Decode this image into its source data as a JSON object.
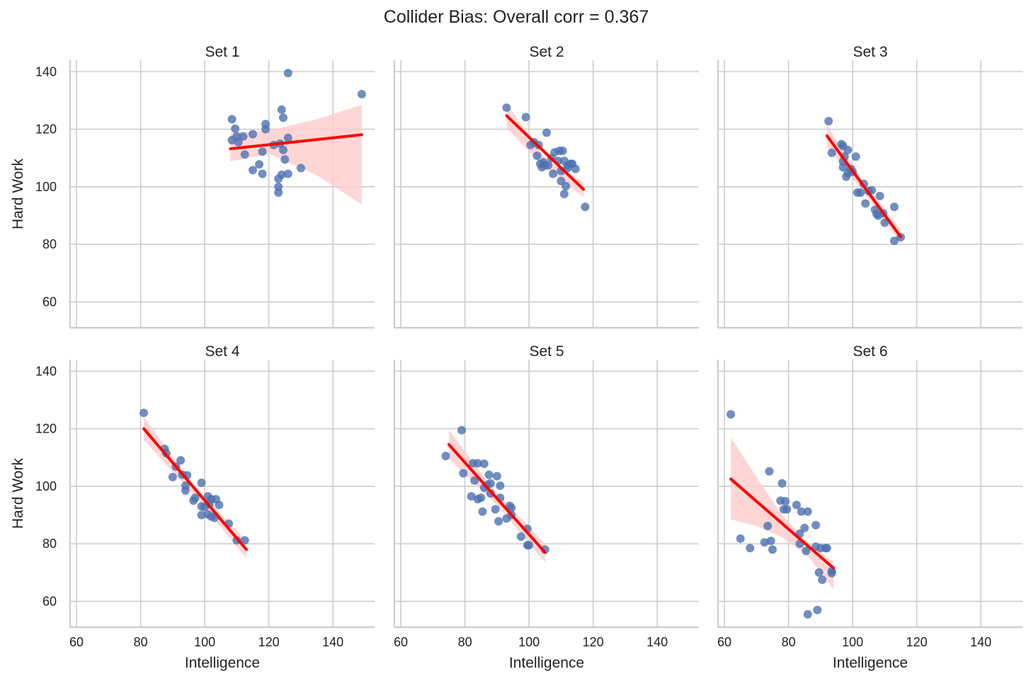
{
  "chart_data": {
    "type": "scatter",
    "title": "Collider Bias: Overall corr = 0.367",
    "xlabel": "Intelligence",
    "ylabel": "Hard Work",
    "xlim": [
      58,
      153
    ],
    "ylim": [
      51,
      144
    ],
    "xticks": [
      60,
      80,
      100,
      120,
      140
    ],
    "yticks": [
      60,
      80,
      100,
      120,
      140
    ],
    "grid": true,
    "colors": {
      "points": "#4c72b0",
      "fit": "#ff0000",
      "band": "#ffcccc"
    },
    "panels": [
      {
        "title": "Set 1",
        "points": [
          [
            108.5,
            123.5
          ],
          [
            109.5,
            120.2
          ],
          [
            110,
            117.5
          ],
          [
            108.5,
            116.2
          ],
          [
            110.5,
            115.5
          ],
          [
            112,
            117.5
          ],
          [
            112.5,
            111.2
          ],
          [
            115,
            118.3
          ],
          [
            115,
            105.8
          ],
          [
            117,
            107.8
          ],
          [
            118,
            112.2
          ],
          [
            118,
            104.5
          ],
          [
            119,
            121.8
          ],
          [
            119,
            120
          ],
          [
            121.5,
            114.5
          ],
          [
            123,
            102.8
          ],
          [
            123,
            100
          ],
          [
            123,
            98
          ],
          [
            123.5,
            115
          ],
          [
            124,
            126.8
          ],
          [
            124,
            104.2
          ],
          [
            124.5,
            124
          ],
          [
            124.5,
            112.8
          ],
          [
            125,
            109.5
          ],
          [
            126,
            117
          ],
          [
            126,
            104.5
          ],
          [
            126,
            139.5
          ],
          [
            130,
            106.5
          ],
          [
            149,
            132.2
          ]
        ],
        "fit": {
          "x": [
            108,
            149
          ],
          "y": [
            113.2,
            118.1
          ]
        },
        "band": {
          "x": [
            108,
            120,
            135,
            149
          ],
          "upper": [
            118.8,
            119.5,
            123.5,
            128.5
          ],
          "lower": [
            108.8,
            111.5,
            104,
            93.8
          ]
        }
      },
      {
        "title": "Set 2",
        "points": [
          [
            93,
            127.5
          ],
          [
            99,
            124.2
          ],
          [
            100.5,
            114.5
          ],
          [
            101.5,
            115.5
          ],
          [
            102.5,
            110.8
          ],
          [
            103,
            114.5
          ],
          [
            103.5,
            108
          ],
          [
            104,
            106.8
          ],
          [
            104.5,
            108.5
          ],
          [
            105,
            107.5
          ],
          [
            105.5,
            118.8
          ],
          [
            106,
            107.5
          ],
          [
            107,
            110
          ],
          [
            107.5,
            104.5
          ],
          [
            108,
            112
          ],
          [
            109,
            109
          ],
          [
            109.5,
            112.5
          ],
          [
            110,
            105.5
          ],
          [
            110,
            102
          ],
          [
            110.5,
            112.5
          ],
          [
            111,
            109
          ],
          [
            111,
            97.5
          ],
          [
            111.5,
            100.2
          ],
          [
            112,
            107.5
          ],
          [
            112,
            106.5
          ],
          [
            113,
            108
          ],
          [
            113.5,
            108
          ],
          [
            114.5,
            106.2
          ],
          [
            117.5,
            93
          ]
        ],
        "fit": {
          "x": [
            93,
            117
          ],
          "y": [
            124.7,
            99.1
          ]
        },
        "band": {
          "x": [
            93,
            105,
            117
          ],
          "upper": [
            129,
            110,
            101.5
          ],
          "lower": [
            120.5,
            106.5,
            96.5
          ]
        }
      },
      {
        "title": "Set 3",
        "points": [
          [
            92.5,
            122.8
          ],
          [
            93.5,
            111.8
          ],
          [
            96.5,
            114.8
          ],
          [
            97,
            114.2
          ],
          [
            97,
            108.8
          ],
          [
            97,
            106.8
          ],
          [
            97.5,
            110.5
          ],
          [
            98,
            103.5
          ],
          [
            98.5,
            112.8
          ],
          [
            98.5,
            104.8
          ],
          [
            99.5,
            106.2
          ],
          [
            100,
            105.2
          ],
          [
            101,
            110.5
          ],
          [
            101.5,
            98
          ],
          [
            102.5,
            98
          ],
          [
            103.5,
            101
          ],
          [
            104,
            94.2
          ],
          [
            105,
            98.5
          ],
          [
            106,
            98.8
          ],
          [
            107,
            92
          ],
          [
            107.5,
            90.5
          ],
          [
            108,
            90
          ],
          [
            108.5,
            96.8
          ],
          [
            109.5,
            90.8
          ],
          [
            110,
            87.5
          ],
          [
            113,
            93
          ],
          [
            113,
            81.2
          ],
          [
            115,
            82.5
          ]
        ],
        "fit": {
          "x": [
            92,
            115
          ],
          "y": [
            117.7,
            82.6
          ]
        },
        "band": {
          "x": [
            92,
            103.5,
            115
          ],
          "upper": [
            121.5,
            101.5,
            85
          ],
          "lower": [
            114,
            98,
            80.2
          ]
        }
      },
      {
        "title": "Set 4",
        "points": [
          [
            81,
            125.5
          ],
          [
            87.5,
            113
          ],
          [
            88,
            111.5
          ],
          [
            90,
            103.2
          ],
          [
            91,
            106.8
          ],
          [
            92.5,
            109
          ],
          [
            93,
            104
          ],
          [
            94,
            100.2
          ],
          [
            94,
            98.5
          ],
          [
            94.5,
            103.8
          ],
          [
            96.5,
            95
          ],
          [
            97,
            96
          ],
          [
            99,
            101.2
          ],
          [
            99,
            93
          ],
          [
            99,
            90
          ],
          [
            100,
            92.8
          ],
          [
            101,
            90.2
          ],
          [
            101,
            96.5
          ],
          [
            101.5,
            93.8
          ],
          [
            102,
            89.5
          ],
          [
            102,
            95.5
          ],
          [
            103,
            89
          ],
          [
            103.5,
            95.5
          ],
          [
            104.5,
            93.5
          ],
          [
            107.5,
            87
          ],
          [
            110,
            81.2
          ],
          [
            112.5,
            81.2
          ]
        ],
        "fit": {
          "x": [
            81,
            113
          ],
          "y": [
            120,
            78
          ]
        },
        "band": {
          "x": [
            81,
            97,
            113
          ],
          "upper": [
            124,
            100,
            81
          ],
          "lower": [
            116,
            96.5,
            75
          ]
        }
      },
      {
        "title": "Set 5",
        "points": [
          [
            74,
            110.5
          ],
          [
            79,
            119.5
          ],
          [
            79.5,
            104.5
          ],
          [
            82,
            96.5
          ],
          [
            82.5,
            108
          ],
          [
            83,
            102
          ],
          [
            84,
            108
          ],
          [
            84,
            95.5
          ],
          [
            85,
            96
          ],
          [
            85.5,
            91.2
          ],
          [
            86,
            107.8
          ],
          [
            86,
            99.5
          ],
          [
            87,
            100.5
          ],
          [
            87.5,
            104
          ],
          [
            88,
            101
          ],
          [
            88,
            97.5
          ],
          [
            89.5,
            92
          ],
          [
            90,
            103.5
          ],
          [
            90.5,
            87.8
          ],
          [
            91,
            100.2
          ],
          [
            91,
            96
          ],
          [
            93,
            88.8
          ],
          [
            94,
            93.2
          ],
          [
            94.5,
            90
          ],
          [
            94.5,
            92.5
          ],
          [
            97.5,
            82.5
          ],
          [
            99.5,
            79.5
          ],
          [
            99.5,
            85.2
          ],
          [
            100,
            79.5
          ],
          [
            105,
            78
          ]
        ],
        "fit": {
          "x": [
            75,
            105
          ],
          "y": [
            114.5,
            77
          ]
        },
        "band": {
          "x": [
            75,
            90,
            105
          ],
          "upper": [
            119.5,
            97.5,
            80
          ],
          "lower": [
            109.5,
            93.5,
            73.5
          ]
        }
      },
      {
        "title": "Set 6",
        "points": [
          [
            62,
            125
          ],
          [
            65,
            81.8
          ],
          [
            68,
            78.5
          ],
          [
            72.5,
            80.5
          ],
          [
            73.5,
            86.2
          ],
          [
            74,
            105.2
          ],
          [
            74.5,
            81
          ],
          [
            75,
            78
          ],
          [
            77.5,
            95
          ],
          [
            78,
            101
          ],
          [
            78.5,
            92
          ],
          [
            79,
            94.8
          ],
          [
            79.5,
            92
          ],
          [
            82.5,
            93.5
          ],
          [
            83.5,
            83.5
          ],
          [
            83.5,
            80
          ],
          [
            84,
            91.2
          ],
          [
            85,
            85.5
          ],
          [
            85.5,
            77.5
          ],
          [
            86,
            91.2
          ],
          [
            86,
            55.5
          ],
          [
            88.5,
            86.5
          ],
          [
            88.5,
            79
          ],
          [
            89,
            57
          ],
          [
            89.5,
            70
          ],
          [
            90,
            78.5
          ],
          [
            90.5,
            67.5
          ],
          [
            91.5,
            78.5
          ],
          [
            92,
            78.5
          ],
          [
            93.5,
            70.5
          ],
          [
            93.5,
            69.8
          ]
        ],
        "fit": {
          "x": [
            62,
            94
          ],
          "y": [
            102.5,
            71.6
          ]
        },
        "band": {
          "x": [
            62,
            70,
            78,
            86,
            94
          ],
          "upper": [
            117,
            103.2,
            90,
            80.5,
            73.8
          ],
          "lower": [
            88.5,
            86.2,
            82.2,
            75.8,
            64.2
          ]
        }
      }
    ]
  }
}
